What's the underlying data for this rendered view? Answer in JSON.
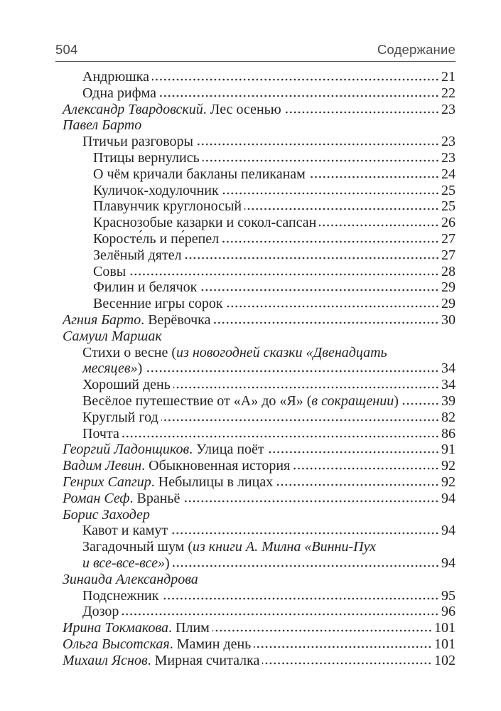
{
  "header": {
    "page_number": "504",
    "title": "Содержание"
  },
  "toc_rows": [
    {
      "indent": 1,
      "segments": [
        {
          "t": "Андрюшка"
        }
      ],
      "page": "21"
    },
    {
      "indent": 1,
      "segments": [
        {
          "t": "Одна рифма"
        }
      ],
      "page": "22"
    },
    {
      "indent": 0,
      "segments": [
        {
          "t": "Александр Твардовский",
          "i": true
        },
        {
          "t": ". Лес осенью"
        }
      ],
      "page": "23"
    },
    {
      "indent": 0,
      "segments": [
        {
          "t": "Павел Барто",
          "i": true
        }
      ],
      "page": null
    },
    {
      "indent": 1,
      "segments": [
        {
          "t": "Птичьи разговоры"
        }
      ],
      "page": "23"
    },
    {
      "indent": 2,
      "segments": [
        {
          "t": "Птицы вернулись"
        }
      ],
      "page": "23"
    },
    {
      "indent": 2,
      "segments": [
        {
          "t": "О чём кричали бакланы пеликанам"
        }
      ],
      "page": "24"
    },
    {
      "indent": 2,
      "segments": [
        {
          "t": "Куличок-ходулочник"
        }
      ],
      "page": "25"
    },
    {
      "indent": 2,
      "segments": [
        {
          "t": "Плавунчик круглоносый"
        }
      ],
      "page": "25"
    },
    {
      "indent": 2,
      "segments": [
        {
          "t": "Краснозобые казарки и сокол-сапсан"
        }
      ],
      "page": "26"
    },
    {
      "indent": 2,
      "segments": [
        {
          "t": "Коросте́ль и пе́репел"
        }
      ],
      "page": "27"
    },
    {
      "indent": 2,
      "segments": [
        {
          "t": "Зелёный дятел"
        }
      ],
      "page": "27"
    },
    {
      "indent": 2,
      "segments": [
        {
          "t": "Совы"
        }
      ],
      "page": "28"
    },
    {
      "indent": 2,
      "segments": [
        {
          "t": "Филин и белячок"
        }
      ],
      "page": "29"
    },
    {
      "indent": 2,
      "segments": [
        {
          "t": "Весенние игры сорок"
        }
      ],
      "page": "29"
    },
    {
      "indent": 0,
      "segments": [
        {
          "t": "Агния Барто",
          "i": true
        },
        {
          "t": ". Верёвочка"
        }
      ],
      "page": "30"
    },
    {
      "indent": 0,
      "segments": [
        {
          "t": "Самуил Маршак",
          "i": true
        }
      ],
      "page": null
    },
    {
      "indent": 1,
      "segments": [
        {
          "t": "Стихи о весне ("
        },
        {
          "t": "из новогодней сказки «Двенадцать",
          "i": true
        }
      ],
      "page": null
    },
    {
      "indent": 1,
      "segments": [
        {
          "t": "месяцев»",
          "i": true
        },
        {
          "t": ")"
        }
      ],
      "page": "34"
    },
    {
      "indent": 1,
      "segments": [
        {
          "t": "Хороший день"
        }
      ],
      "page": "34"
    },
    {
      "indent": 1,
      "segments": [
        {
          "t": "Весёлое путешествие от «А» до «Я» ("
        },
        {
          "t": "в сокращении",
          "i": true
        },
        {
          "t": ")"
        }
      ],
      "page": "39"
    },
    {
      "indent": 1,
      "segments": [
        {
          "t": "Круглый год"
        }
      ],
      "page": "82"
    },
    {
      "indent": 1,
      "segments": [
        {
          "t": "Почта"
        }
      ],
      "page": "86"
    },
    {
      "indent": 0,
      "segments": [
        {
          "t": "Георгий Ладонщиков",
          "i": true
        },
        {
          "t": ". Улица поёт"
        }
      ],
      "page": "91"
    },
    {
      "indent": 0,
      "segments": [
        {
          "t": "Вадим Левин",
          "i": true
        },
        {
          "t": ". Обыкновенная история"
        }
      ],
      "page": "92"
    },
    {
      "indent": 0,
      "segments": [
        {
          "t": "Генрих Сапгир",
          "i": true
        },
        {
          "t": ". Небылицы в лицах"
        }
      ],
      "page": "92"
    },
    {
      "indent": 0,
      "segments": [
        {
          "t": "Роман Сеф",
          "i": true
        },
        {
          "t": ". Враньё"
        }
      ],
      "page": "94"
    },
    {
      "indent": 0,
      "segments": [
        {
          "t": "Борис Заходер",
          "i": true
        }
      ],
      "page": null
    },
    {
      "indent": 1,
      "segments": [
        {
          "t": "Кавот и камут"
        }
      ],
      "page": "94"
    },
    {
      "indent": 1,
      "segments": [
        {
          "t": "Загадочный шум ("
        },
        {
          "t": "из книги А. Милна «Винни-Пух",
          "i": true
        }
      ],
      "page": null
    },
    {
      "indent": 1,
      "segments": [
        {
          "t": "и все-все-все»",
          "i": true
        },
        {
          "t": ")"
        }
      ],
      "page": "94"
    },
    {
      "indent": 0,
      "segments": [
        {
          "t": "Зинаида Александрова",
          "i": true
        }
      ],
      "page": null
    },
    {
      "indent": 1,
      "segments": [
        {
          "t": "Подснежник"
        }
      ],
      "page": "95"
    },
    {
      "indent": 1,
      "segments": [
        {
          "t": "Дозор"
        }
      ],
      "page": "96"
    },
    {
      "indent": 0,
      "segments": [
        {
          "t": "Ирина Токмакова",
          "i": true
        },
        {
          "t": ". Плим"
        }
      ],
      "page": "101"
    },
    {
      "indent": 0,
      "segments": [
        {
          "t": "Ольга Высотская",
          "i": true
        },
        {
          "t": ". Мамин день"
        }
      ],
      "page": "101"
    },
    {
      "indent": 0,
      "segments": [
        {
          "t": "Михаил Яснов",
          "i": true
        },
        {
          "t": ". Мирная считалка"
        }
      ],
      "page": "102"
    }
  ]
}
